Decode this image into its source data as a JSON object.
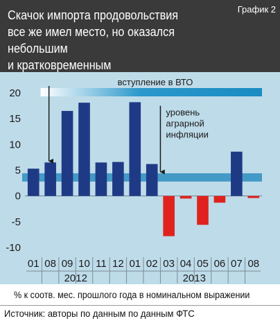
{
  "header": {
    "title_lines": [
      "Скачок импорта продовольствия",
      "все же имел место, но оказался небольшим",
      "и кратковременным"
    ],
    "tag": "График 2"
  },
  "footnote": "% к соотв. мес. прошлого года в номинальном выражении",
  "source": "Источник: авторы по данным по данным ФТС",
  "colors": {
    "header_bg": "#3a3a3a",
    "plot_bg": "#bedbe9",
    "positive_bar": "#1f3a85",
    "negative_bar": "#e0221f",
    "band": "#3391c0",
    "wto_bar": "#1a8cc2"
  },
  "chart_data": {
    "type": "bar",
    "categories": [
      "01",
      "08",
      "09",
      "10",
      "11",
      "12",
      "01",
      "02",
      "03",
      "04",
      "05",
      "06",
      "07",
      "08"
    ],
    "year_groups": [
      {
        "label": "2012",
        "from": 0,
        "to": 5
      },
      {
        "label": "2013",
        "from": 6,
        "to": 13
      }
    ],
    "values": [
      5.3,
      6.5,
      16.5,
      18.1,
      6.5,
      6.6,
      18.2,
      6.2,
      -7.8,
      -0.5,
      -5.6,
      -1.3,
      8.6,
      -0.4
    ],
    "ylim": [
      -10,
      20
    ],
    "yticks": [
      -10,
      -5,
      0,
      5,
      10,
      15,
      20
    ],
    "annotations": {
      "wto": {
        "label": "вступление в ВТО",
        "start_index": 1
      },
      "inflation": {
        "label_lines": [
          "уровень",
          "аграрной",
          "инфляции"
        ],
        "band": [
          2.8,
          4.4
        ],
        "arrow_index": 7.5
      },
      "arrow_2012": {
        "index": 1
      }
    }
  }
}
